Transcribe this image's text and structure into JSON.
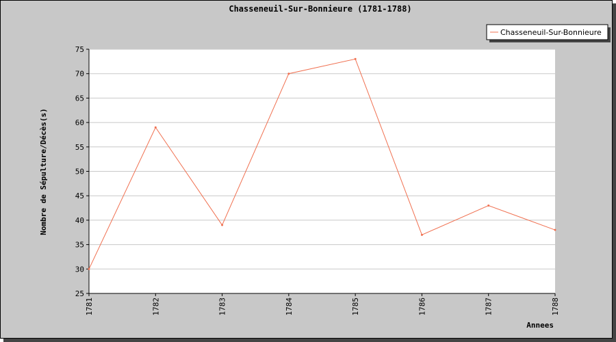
{
  "chart_data": {
    "type": "line",
    "title": "Chasseneuil-Sur-Bonnieure (1781-1788)",
    "xlabel": "Annees",
    "ylabel": "Nombre de Sépulture/Décès(s)",
    "categories": [
      "1781",
      "1782",
      "1783",
      "1784",
      "1785",
      "1786",
      "1787",
      "1788"
    ],
    "series": [
      {
        "name": "Chasseneuil-Sur-Bonnieure",
        "values": [
          30,
          59,
          39,
          70,
          73,
          37,
          43,
          38
        ],
        "color": "#f07050"
      }
    ],
    "yticks": [
      25,
      30,
      35,
      40,
      45,
      50,
      55,
      60,
      65,
      70,
      75
    ],
    "ylim": [
      25,
      75
    ],
    "grid": true,
    "legend_position": "top-right"
  }
}
